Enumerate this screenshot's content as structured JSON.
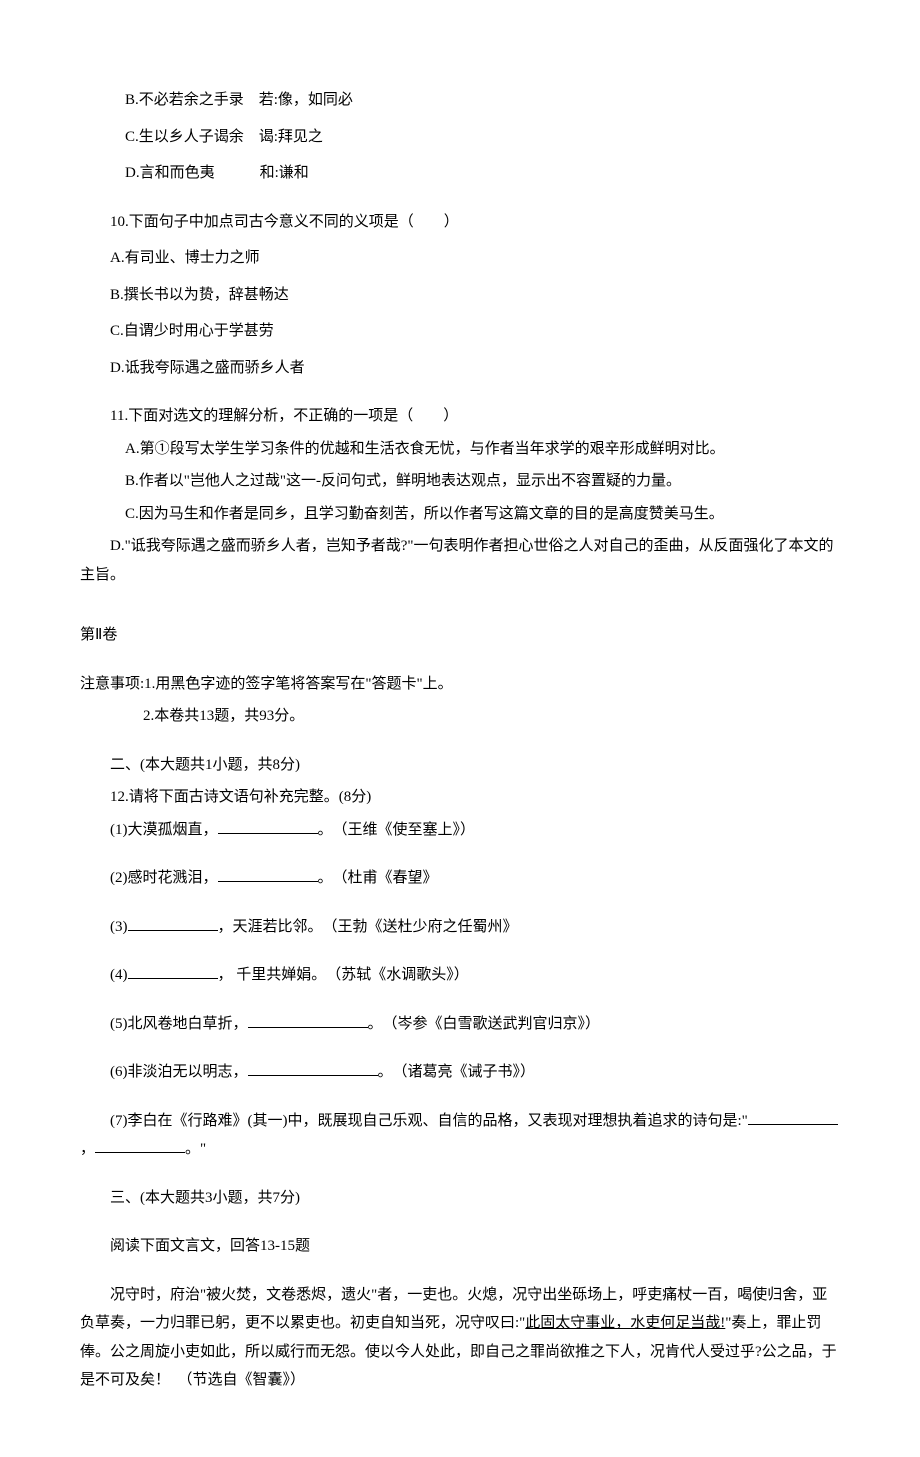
{
  "page": {
    "background": "#ffffff",
    "text_color": "#000000",
    "font_family": "SimSun",
    "base_fontsize": 15
  },
  "block1": {
    "options": [
      "B.不必若余之手录　若:像，如同必",
      "C.生以乡人子谒余　谒:拜见之",
      "D.言和而色夷　　　和:谦和"
    ]
  },
  "q10": {
    "stem": "10.下面句子中加点司古今意义不同的义项是（　　）",
    "options": [
      "A.有司业、博士力之师",
      "B.撰长书以为贽，辞甚畅达",
      "C.自谓少时用心于学甚劳",
      "D.诋我夸际遇之盛而骄乡人者"
    ]
  },
  "q11": {
    "stem": "11.下面对选文的理解分析，不正确的一项是（　　）",
    "options": [
      "A.第①段写太学生学习条件的优越和生活衣食无忧，与作者当年求学的艰辛形成鲜明对比。",
      "B.作者以\"岂他人之过哉\"这一-反问句式，鲜明地表达观点，显示出不容置疑的力量。",
      "C.因为马生和作者是同乡，且学习勤奋刻苦，所以作者写这篇文章的目的是高度赞美马生。",
      "D.\"诋我夸际遇之盛而骄乡人者，岂知予者哉?\"一句表明作者担心世俗之人对自己的歪曲，从反面强化了本文的主旨。"
    ]
  },
  "part2": {
    "heading": "第Ⅱ卷",
    "notice_label": "注意事项:",
    "notices": [
      "1.用黑色字迹的签字笔将答案写在\"答题卡\"上。",
      "2.本卷共13题，共93分。"
    ]
  },
  "section2": {
    "heading": "二、(本大题共1小题，共8分)",
    "q12_stem": "12.请将下面古诗文语句补充完整。(8分)",
    "items": [
      {
        "pre": "(1)大漠孤烟直，",
        "blank_width": 100,
        "post": "。　（王维《使至塞上》）"
      },
      {
        "pre": "(2)感时花溅泪，",
        "blank_width": 100,
        "post": "。　（杜甫《春望》"
      },
      {
        "pre": "(3)",
        "blank_width": 90,
        "post": "，天涯若比邻。　（王勃《送杜少府之任蜀州》"
      },
      {
        "pre": "(4)",
        "blank_width": 90,
        "post": "，  千里共婵娟。　（苏轼《水调歌头》）"
      },
      {
        "pre": "(5)北风卷地白草折，",
        "blank_width": 120,
        "post": "。　（岑参《白雪歌送武判官归京》）"
      },
      {
        "pre": "(6)非淡泊无以明志，",
        "blank_width": 130,
        "post": "。　（诸葛亮《诫子书》）"
      }
    ],
    "item7_pre": "(7)李白在《行路难》(其一)中，既展现自己乐观、自信的品格，又表现对理想执着追求的诗句是:\"",
    "item7_blank1": 90,
    "item7_mid": "，",
    "item7_blank2": 90,
    "item7_post": "。\""
  },
  "section3": {
    "heading": "三、(本大题共3小题，共7分)",
    "instruction": "阅读下面文言文，回答13-15题",
    "passage_pre": "况守时，府治\"被火焚，文卷悉烬，遗火\"者，一吏也。火熄，况守出坐砾场上，呼吏痛杖一百，喝使归舍，亚负草奏，一力归罪已躬，更不以累吏也。初吏自知当死，况守叹曰:\"",
    "passage_underline": "此固太守事业，水吏何足当哉!",
    "passage_post": "\"奏上，罪止罚俸。公之周旋小吏如此，所以威行而无怨。使以今人处此，即自己之罪尚欲推之下人，况肯代人受过乎?公之品，于是不可及矣！　（节选自《智囊》）"
  }
}
